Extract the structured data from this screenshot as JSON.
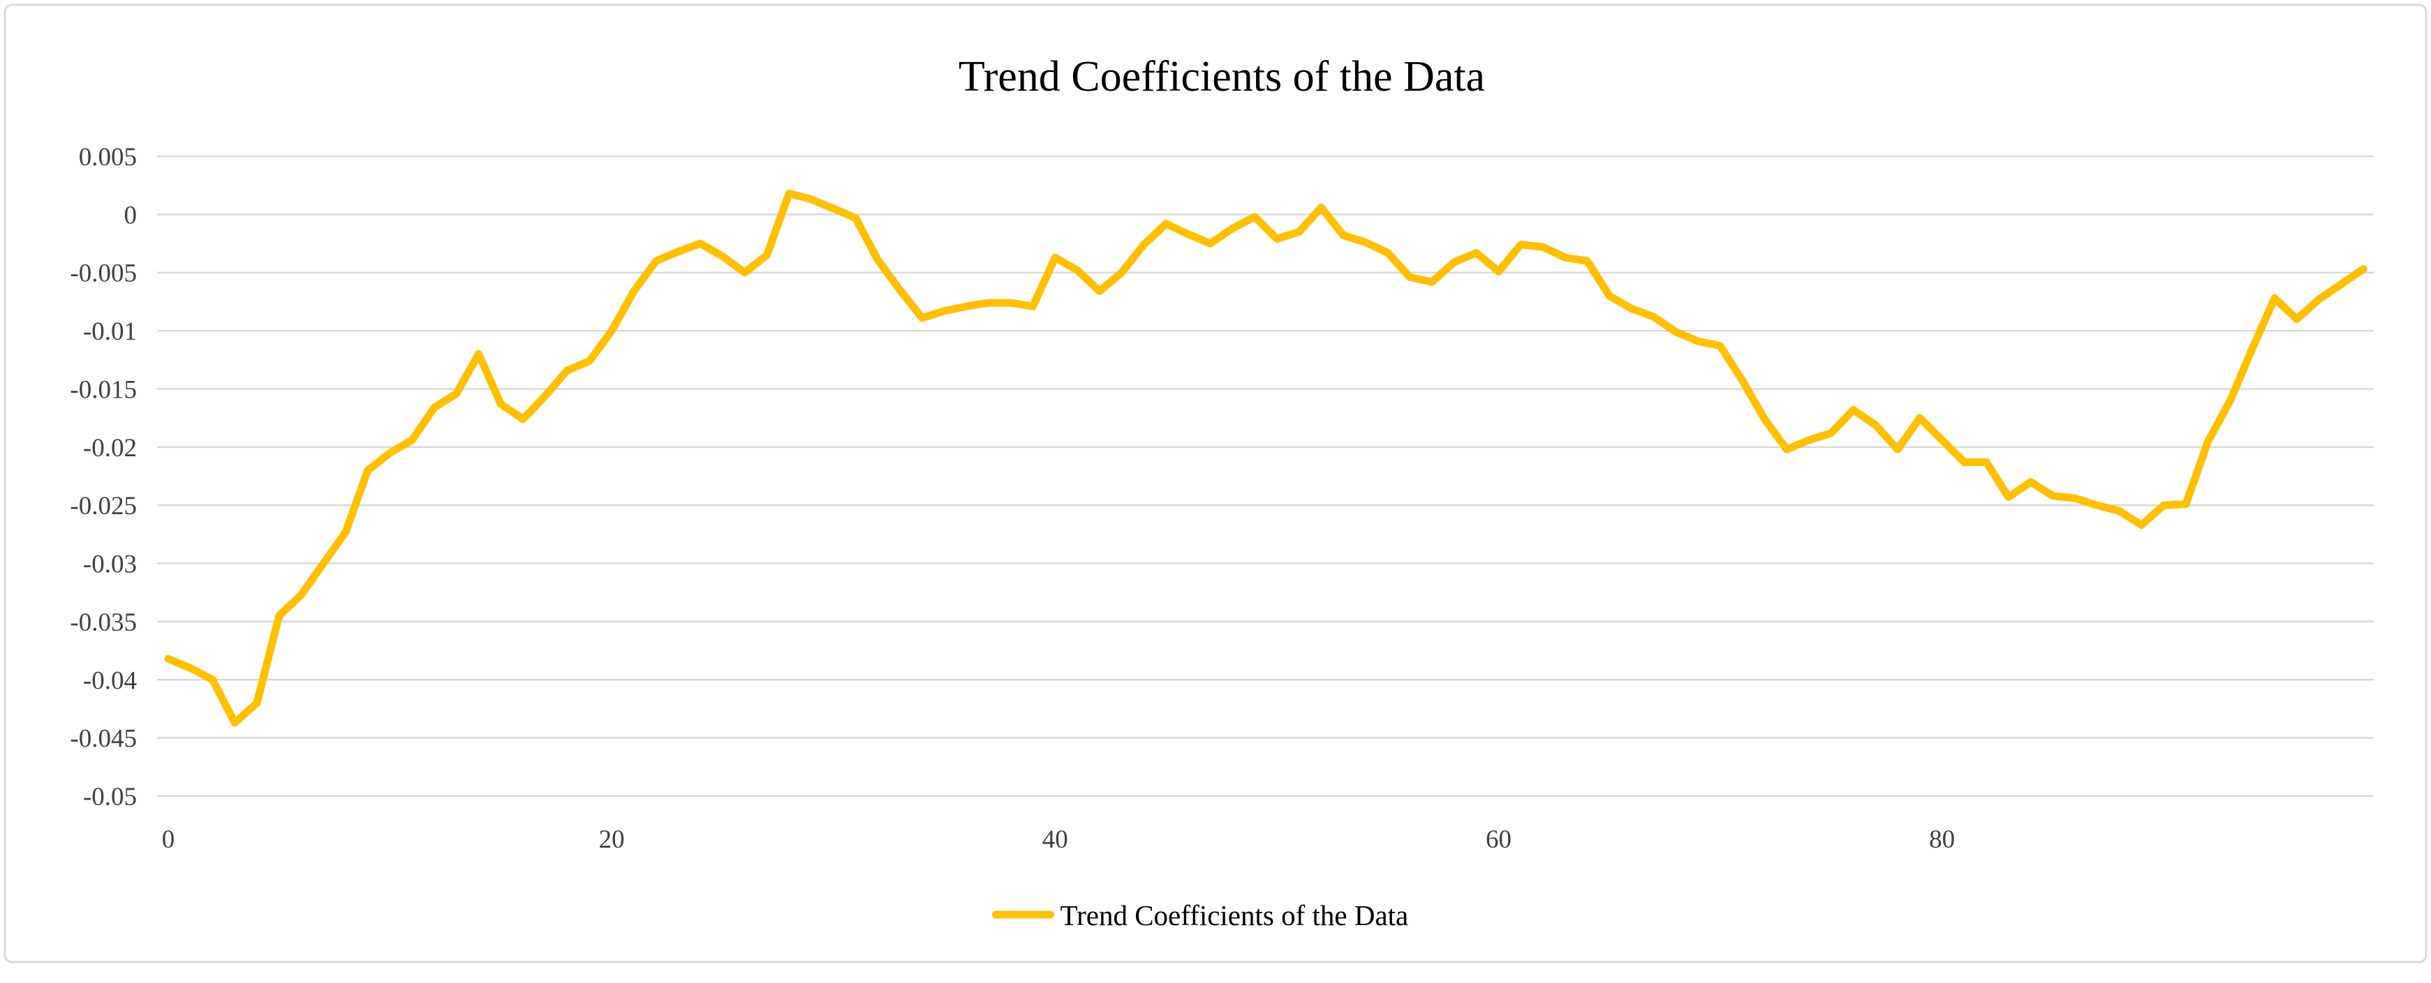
{
  "chart_data": {
    "type": "line",
    "title": "Trend Coefficients of the Data",
    "legend_label": "Trend Coefficients of the Data",
    "legend_position": "bottom",
    "grid": true,
    "line_color": "#FFC000",
    "gridline_color": "#d9d9d9",
    "axis_label_color": "#404040",
    "xlabel": "",
    "ylabel": "",
    "ylim": [
      -0.05,
      0.005
    ],
    "y_tick_values": [
      0.005,
      0,
      -0.005,
      -0.01,
      -0.015,
      -0.02,
      -0.025,
      -0.03,
      -0.035,
      -0.04,
      -0.045,
      -0.05
    ],
    "y_tick_labels": [
      "0.005",
      "0",
      "-0.005",
      "-0.01",
      "-0.015",
      "-0.02",
      "-0.025",
      "-0.03",
      "-0.035",
      "-0.04",
      "-0.045",
      "-0.05"
    ],
    "x_tick_values": [
      0,
      20,
      40,
      60,
      80
    ],
    "x_tick_labels": [
      "0",
      "20",
      "40",
      "60",
      "80"
    ],
    "x_start": 0,
    "series": [
      {
        "name": "Trend Coefficients of the Data",
        "color": "#FFC000",
        "values": [
          -0.0382,
          -0.039,
          -0.04,
          -0.0437,
          -0.042,
          -0.0345,
          -0.0327,
          -0.03,
          -0.0273,
          -0.022,
          -0.0205,
          -0.0194,
          -0.0166,
          -0.0154,
          -0.012,
          -0.0163,
          -0.0176,
          -0.0156,
          -0.0134,
          -0.0126,
          -0.01,
          -0.0066,
          -0.004,
          -0.0032,
          -0.0025,
          -0.0036,
          -0.005,
          -0.0035,
          0.0018,
          0.0013,
          0.0005,
          -0.0003,
          -0.0039,
          -0.0065,
          -0.0089,
          -0.0083,
          -0.0079,
          -0.0076,
          -0.0076,
          -0.0079,
          -0.0037,
          -0.0048,
          -0.0066,
          -0.005,
          -0.0026,
          -0.0008,
          -0.0017,
          -0.0025,
          -0.0012,
          -0.0002,
          -0.0021,
          -0.0015,
          0.0006,
          -0.0018,
          -0.0024,
          -0.0033,
          -0.0054,
          -0.0058,
          -0.0041,
          -0.0033,
          -0.0049,
          -0.0026,
          -0.0028,
          -0.0037,
          -0.004,
          -0.007,
          -0.0081,
          -0.0088,
          -0.0101,
          -0.0109,
          -0.0113,
          -0.0143,
          -0.0176,
          -0.0202,
          -0.0194,
          -0.0188,
          -0.0168,
          -0.0181,
          -0.0202,
          -0.0175,
          -0.0194,
          -0.0213,
          -0.0213,
          -0.0243,
          -0.023,
          -0.0242,
          -0.0244,
          -0.025,
          -0.0255,
          -0.0267,
          -0.025,
          -0.0249,
          -0.0195,
          -0.016,
          -0.0115,
          -0.0072,
          -0.009,
          -0.0073,
          -0.006,
          -0.0047
        ]
      }
    ]
  }
}
